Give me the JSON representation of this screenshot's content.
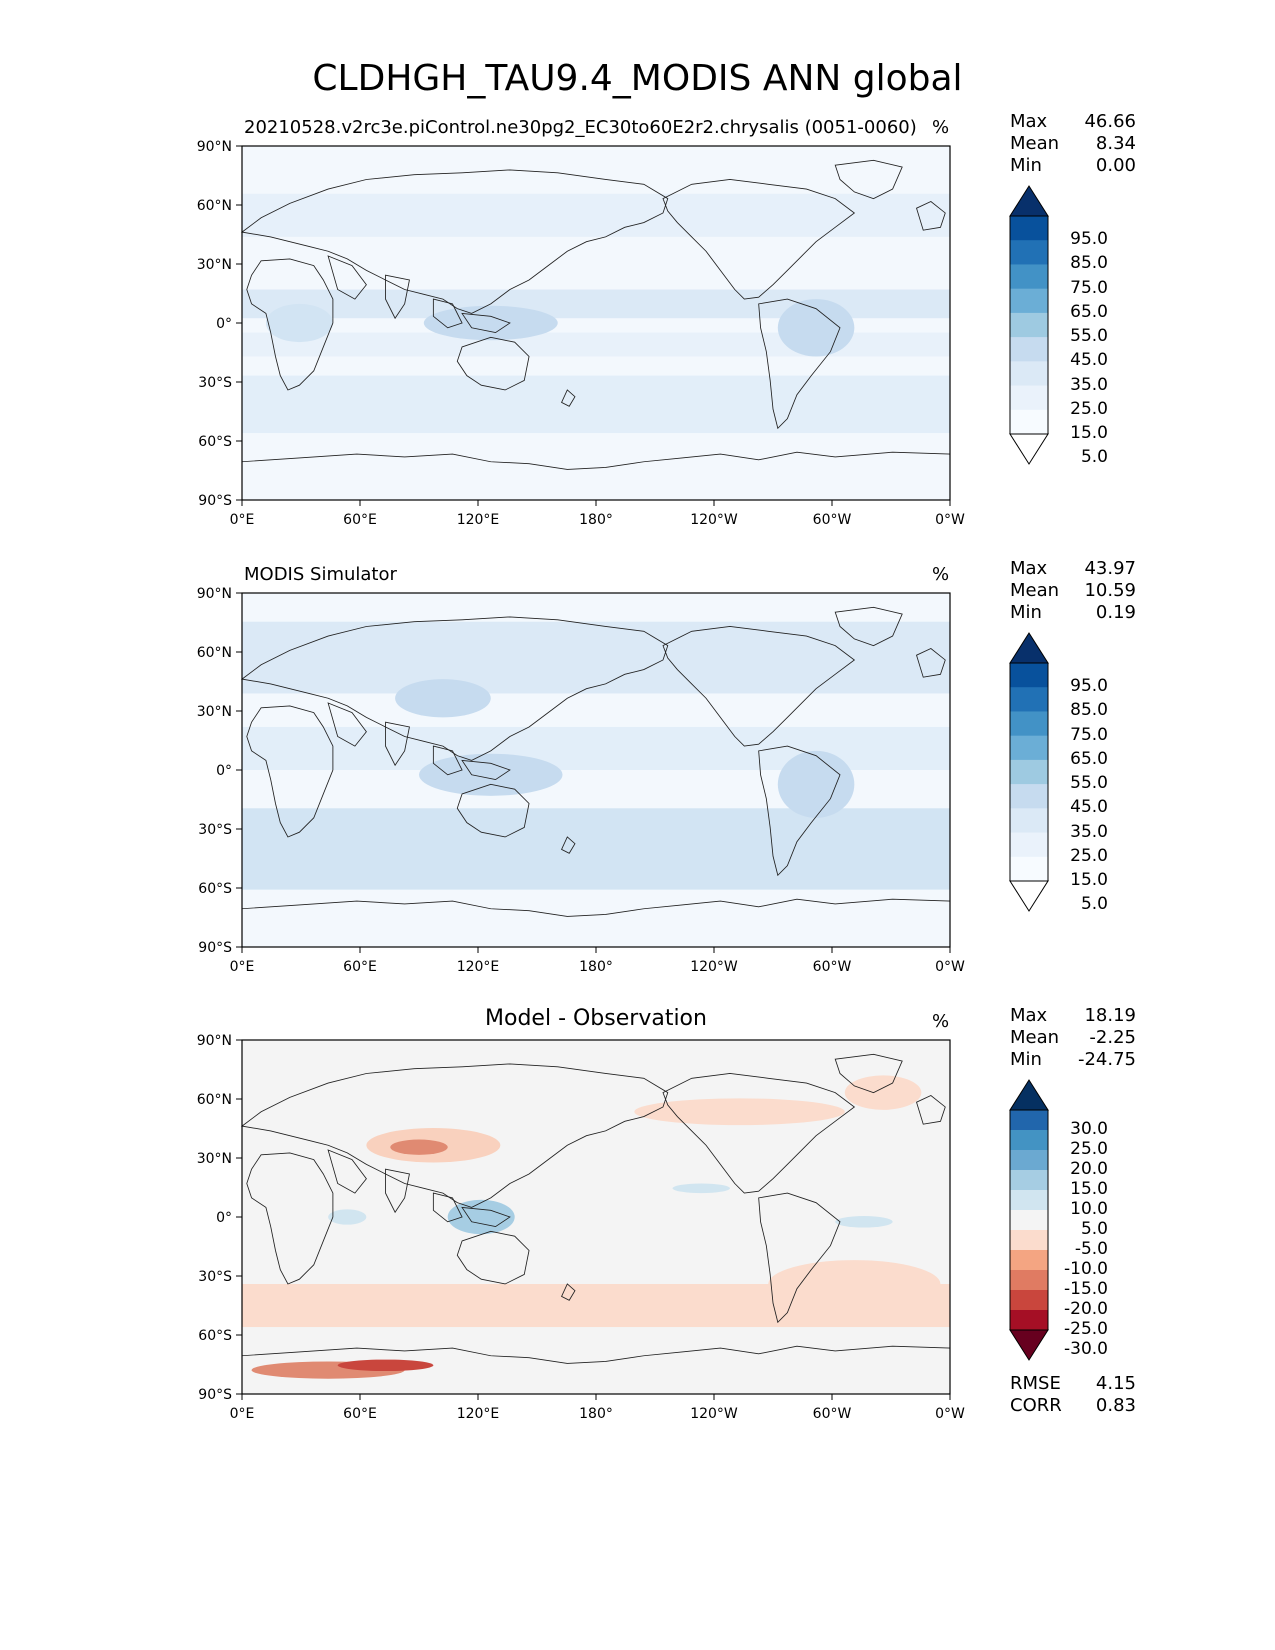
{
  "title": "CLDHGH_TAU9.4_MODIS ANN global",
  "panels": [
    {
      "id": "test",
      "title": "20210528.v2rc3e.piControl.ne30pg2_EC30to60E2r2.chrysalis (0051-0060)",
      "title_align": "left",
      "units": "%",
      "stats": [
        {
          "label": "Max",
          "value": "46.66"
        },
        {
          "label": "Mean",
          "value": "8.34"
        },
        {
          "label": "Min",
          "value": "0.00"
        }
      ],
      "colorbar": {
        "labels": [
          "95.0",
          "85.0",
          "75.0",
          "65.0",
          "55.0",
          "45.0",
          "35.0",
          "25.0",
          "15.0",
          "5.0"
        ],
        "colors": [
          "#08306b",
          "#08519c",
          "#2171b5",
          "#4292c6",
          "#6baed6",
          "#9ecae1",
          "#c6dbef",
          "#dbe9f6",
          "#eaf2fb",
          "#f7fbff",
          "#ffffff"
        ]
      }
    },
    {
      "id": "reference",
      "title": "MODIS Simulator",
      "title_align": "left",
      "units": "%",
      "stats": [
        {
          "label": "Max",
          "value": "43.97"
        },
        {
          "label": "Mean",
          "value": "10.59"
        },
        {
          "label": "Min",
          "value": "0.19"
        }
      ],
      "colorbar": {
        "labels": [
          "95.0",
          "85.0",
          "75.0",
          "65.0",
          "55.0",
          "45.0",
          "35.0",
          "25.0",
          "15.0",
          "5.0"
        ],
        "colors": [
          "#08306b",
          "#08519c",
          "#2171b5",
          "#4292c6",
          "#6baed6",
          "#9ecae1",
          "#c6dbef",
          "#dbe9f6",
          "#eaf2fb",
          "#f7fbff",
          "#ffffff"
        ]
      }
    },
    {
      "id": "diff",
      "title": "Model - Observation",
      "title_align": "center",
      "units": "%",
      "stats": [
        {
          "label": "Max",
          "value": "18.19"
        },
        {
          "label": "Mean",
          "value": "-2.25"
        },
        {
          "label": "Min",
          "value": "-24.75"
        }
      ],
      "extra_stats": [
        {
          "label": "RMSE",
          "value": "4.15"
        },
        {
          "label": "CORR",
          "value": "0.83"
        }
      ],
      "colorbar": {
        "labels": [
          "30.0",
          "25.0",
          "20.0",
          "15.0",
          "10.0",
          "5.0",
          "-5.0",
          "-10.0",
          "-15.0",
          "-20.0",
          "-25.0",
          "-30.0"
        ],
        "colors": [
          "#053061",
          "#2166ac",
          "#4393c3",
          "#6ba9d1",
          "#a6cde3",
          "#d1e5f0",
          "#f4f4f4",
          "#fbdccd",
          "#f4a582",
          "#e07b62",
          "#c9463d",
          "#a50f25",
          "#67001f"
        ]
      }
    }
  ],
  "axes": {
    "lat_ticks": [
      "90°N",
      "60°N",
      "30°N",
      "0°",
      "30°S",
      "60°S",
      "90°S"
    ],
    "lon_ticks": [
      "0°E",
      "60°E",
      "120°E",
      "180°",
      "120°W",
      "60°W",
      "0°W"
    ]
  },
  "colors": {
    "ocean_test": "#f3f8fd",
    "land_outline": "#222222",
    "diff_background": "#f4f4f4",
    "diff_negative": "#fbdccd",
    "diff_strong_negative": "#e08a72",
    "diff_positive": "#c7dff0"
  }
}
